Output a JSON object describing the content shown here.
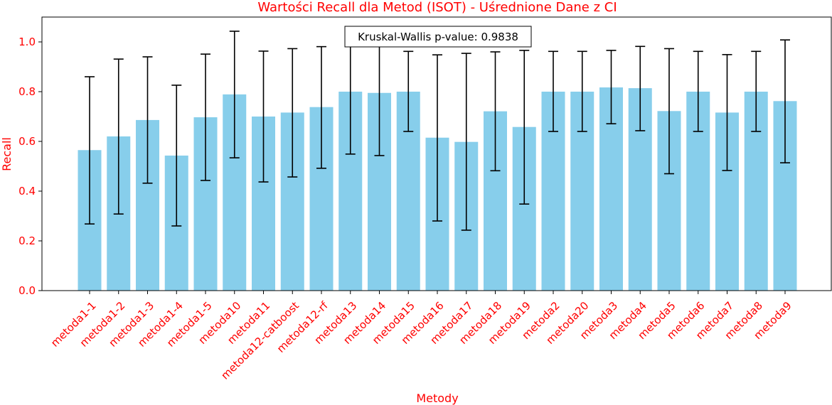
{
  "chart_data": {
    "type": "bar",
    "title": "Wartości Recall dla Metod (ISOT) - Uśrednione Dane z CI",
    "xlabel": "Metody",
    "ylabel": "Recall",
    "ylim": [
      0,
      1.1
    ],
    "yticks": [
      "0.0",
      "0.2",
      "0.4",
      "0.6",
      "0.8",
      "1.0"
    ],
    "grid": false,
    "bar_color": "#87ceeb",
    "text_color": "#ff0000",
    "annotation": "Kruskal-Wallis p-value: 0.9838",
    "categories": [
      "metoda1-1",
      "metoda1-2",
      "metoda1-3",
      "metoda1-4",
      "metoda1-5",
      "metoda10",
      "metoda11",
      "metoda12-catboost",
      "metoda12-rf",
      "metoda13",
      "metoda14",
      "metoda15",
      "metoda16",
      "metoda17",
      "metoda18",
      "metoda19",
      "metoda2",
      "metoda20",
      "metoda3",
      "metoda4",
      "metoda5",
      "metoda6",
      "metoda7",
      "metoda8",
      "metoda9"
    ],
    "values": [
      0.565,
      0.62,
      0.686,
      0.543,
      0.697,
      0.789,
      0.7,
      0.716,
      0.738,
      0.8,
      0.795,
      0.8,
      0.615,
      0.598,
      0.721,
      0.658,
      0.8,
      0.8,
      0.817,
      0.814,
      0.722,
      0.8,
      0.716,
      0.8,
      0.762
    ],
    "ci_low": [
      0.268,
      0.308,
      0.432,
      0.26,
      0.443,
      0.534,
      0.437,
      0.457,
      0.492,
      0.549,
      0.543,
      0.64,
      0.28,
      0.243,
      0.482,
      0.348,
      0.64,
      0.64,
      0.671,
      0.643,
      0.47,
      0.64,
      0.483,
      0.64,
      0.514
    ],
    "ci_high": [
      0.86,
      0.931,
      0.94,
      0.826,
      0.951,
      1.043,
      0.963,
      0.973,
      0.981,
      1.001,
      1.001,
      0.962,
      0.948,
      0.954,
      0.96,
      0.966,
      0.962,
      0.962,
      0.966,
      0.982,
      0.973,
      0.962,
      0.949,
      0.962,
      1.008
    ]
  }
}
